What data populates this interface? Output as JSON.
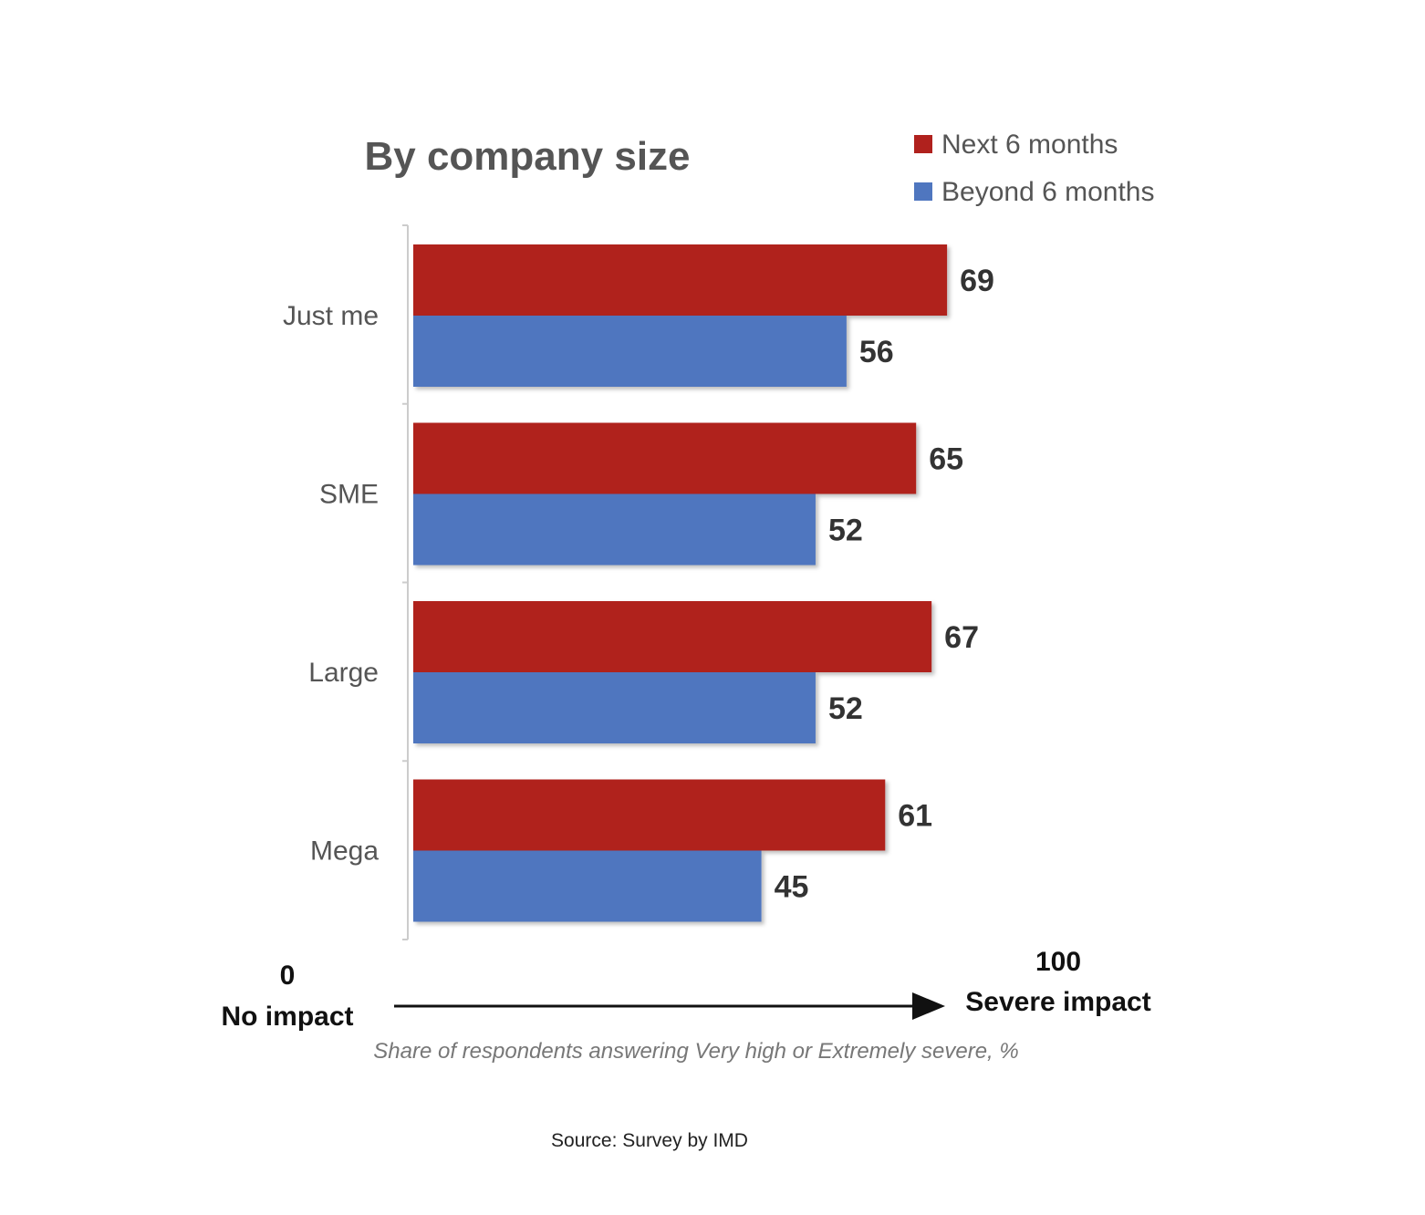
{
  "chart_data": {
    "type": "bar",
    "orientation": "horizontal",
    "title": "By company size",
    "categories": [
      "Just me",
      "SME",
      "Large",
      "Mega"
    ],
    "series": [
      {
        "name": "Next 6 months",
        "color": "#B0211D",
        "values": [
          69,
          65,
          67,
          61
        ]
      },
      {
        "name": "Beyond 6 months",
        "color": "#4F76BF",
        "values": [
          56,
          52,
          52,
          45
        ]
      }
    ],
    "xlim": [
      0,
      100
    ],
    "legend_position": "top-right",
    "axis": {
      "min_label": "0",
      "min_caption": "No impact",
      "max_label": "100",
      "max_caption": "Severe impact"
    },
    "note": "Share of respondents answering Very high or Extremely severe, %",
    "source": "Source: Survey by IMD"
  }
}
